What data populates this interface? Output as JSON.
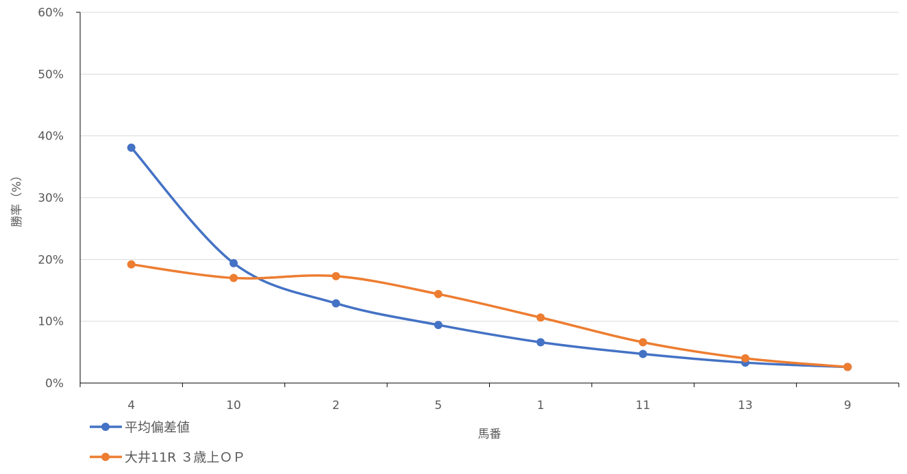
{
  "chart_data": {
    "type": "line",
    "categories": [
      "4",
      "10",
      "2",
      "5",
      "1",
      "11",
      "13",
      "9"
    ],
    "series": [
      {
        "name": "平均偏差値",
        "color": "#4472C4",
        "values": [
          38.1,
          19.4,
          12.9,
          9.4,
          6.6,
          4.7,
          3.3,
          2.6
        ]
      },
      {
        "name": "大井11R ３歳上ＯＰ",
        "color": "#ED7D31",
        "values": [
          19.2,
          17.0,
          17.3,
          14.4,
          10.6,
          6.6,
          4.0,
          2.6
        ]
      }
    ],
    "xlabel": "馬番",
    "ylabel": "勝率（%）",
    "ylim": [
      0,
      60
    ],
    "yticks": [
      "0%",
      "10%",
      "20%",
      "30%",
      "40%",
      "50%",
      "60%"
    ],
    "grid": true,
    "legend_position": "bottom-left",
    "smooth": true
  }
}
